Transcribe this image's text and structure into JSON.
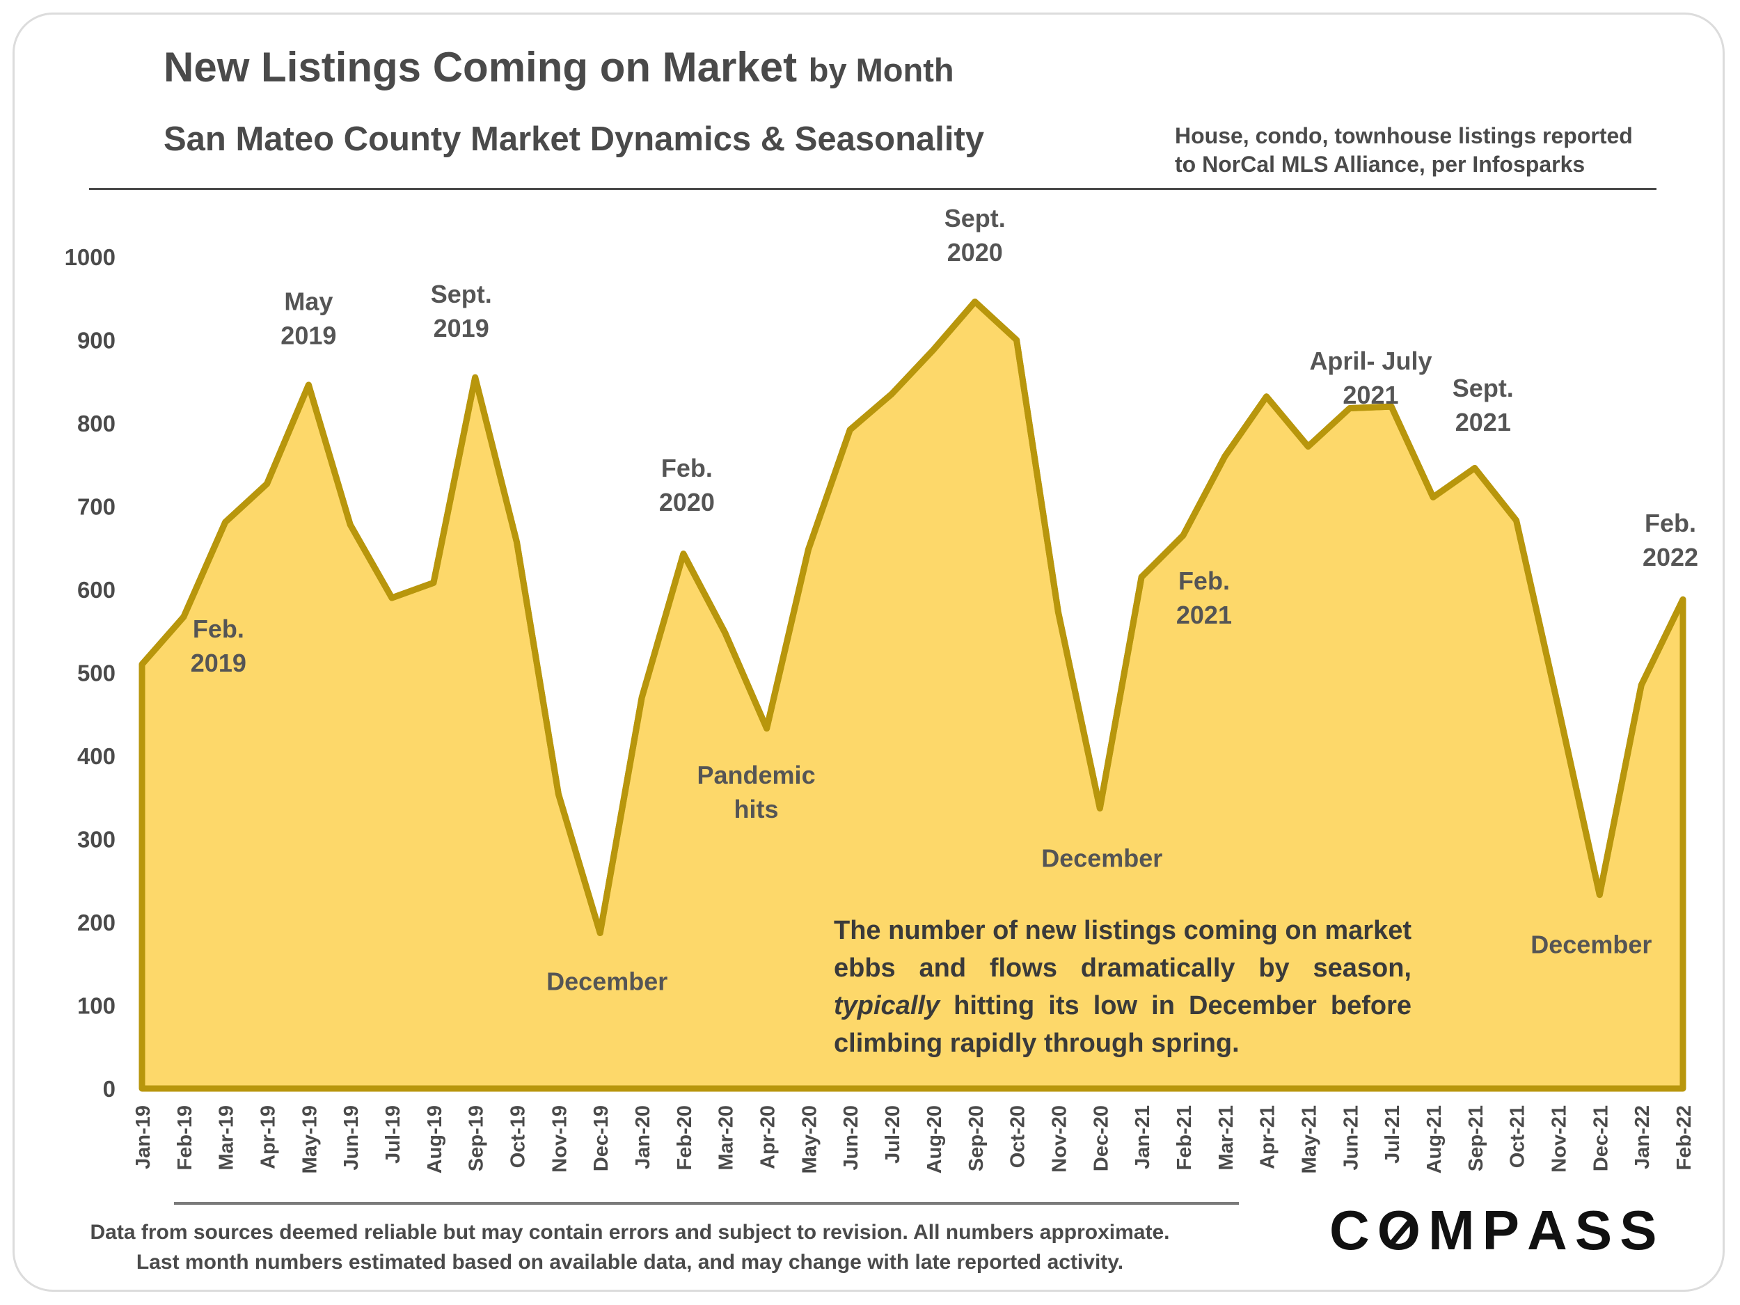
{
  "header": {
    "title": "New Listings Coming on Market",
    "title_suffix": "by Month",
    "subtitle": "San Mateo County Market Dynamics & Seasonality",
    "note_line1": "House, condo, townhouse listings reported",
    "note_line2": "to NorCal MLS Alliance, per Infosparks"
  },
  "footer": {
    "line1": "Data from sources deemed reliable but may contain errors and subject to revision. All numbers approximate.",
    "line2": "Last month numbers estimated based on available data, and may change with late reported activity.",
    "logo": "COMPASS"
  },
  "commentary": {
    "part1": "The number of new listings coming on market ebbs and flows dramatically by season, ",
    "emphasis": "typically",
    "part2": " hitting its low in December before climbing rapidly through spring."
  },
  "colors": {
    "area_fill": "#FDD86A",
    "line": "#B8960C",
    "text": "#4a4a4a",
    "annotation": "#555555"
  },
  "chart_data": {
    "type": "area",
    "title": "New Listings Coming on Market by Month",
    "xlabel": "",
    "ylabel": "",
    "ylim": [
      0,
      1000
    ],
    "yticks": [
      0,
      100,
      200,
      300,
      400,
      500,
      600,
      700,
      800,
      900,
      1000
    ],
    "grid": false,
    "categories": [
      "Jan-19",
      "Feb-19",
      "Mar-19",
      "Apr-19",
      "May-19",
      "Jun-19",
      "Jul-19",
      "Aug-19",
      "Sep-19",
      "Oct-19",
      "Nov-19",
      "Dec-19",
      "Jan-20",
      "Feb-20",
      "Mar-20",
      "Apr-20",
      "May-20",
      "Jun-20",
      "Jul-20",
      "Aug-20",
      "Sep-20",
      "Oct-20",
      "Nov-20",
      "Dec-20",
      "Jan-21",
      "Feb-21",
      "Mar-21",
      "Apr-21",
      "May-21",
      "Jun-21",
      "Jul-21",
      "Aug-21",
      "Sep-21",
      "Oct-21",
      "Nov-21",
      "Dec-21",
      "Jan-22",
      "Feb-22"
    ],
    "values": [
      510,
      567,
      681,
      727,
      846,
      678,
      590,
      608,
      855,
      657,
      354,
      187,
      470,
      643,
      548,
      433,
      648,
      792,
      835,
      888,
      946,
      900,
      573,
      337,
      615,
      665,
      760,
      832,
      772,
      818,
      820,
      711,
      746,
      683,
      460,
      233,
      485,
      588
    ],
    "annotations": [
      {
        "index": 1,
        "lines": [
          "Feb.",
          "2019"
        ]
      },
      {
        "index": 4,
        "lines": [
          "May",
          "2019"
        ]
      },
      {
        "index": 8,
        "lines": [
          "Sept.",
          "2019"
        ]
      },
      {
        "index": 11,
        "lines": [
          "December"
        ]
      },
      {
        "index": 13,
        "lines": [
          "Feb.",
          "2020"
        ]
      },
      {
        "index": 15,
        "lines": [
          "Pandemic",
          "hits"
        ]
      },
      {
        "index": 20,
        "lines": [
          "Sept.",
          "2020"
        ]
      },
      {
        "index": 23,
        "lines": [
          "December"
        ]
      },
      {
        "index": 25,
        "lines": [
          "Feb.",
          "2021"
        ]
      },
      {
        "index": 28,
        "lines": [
          "April- July",
          "2021"
        ]
      },
      {
        "index": 32,
        "lines": [
          "Sept.",
          "2021"
        ]
      },
      {
        "index": 35,
        "lines": [
          "December"
        ]
      },
      {
        "index": 37,
        "lines": [
          "Feb.",
          "2022"
        ]
      }
    ]
  }
}
